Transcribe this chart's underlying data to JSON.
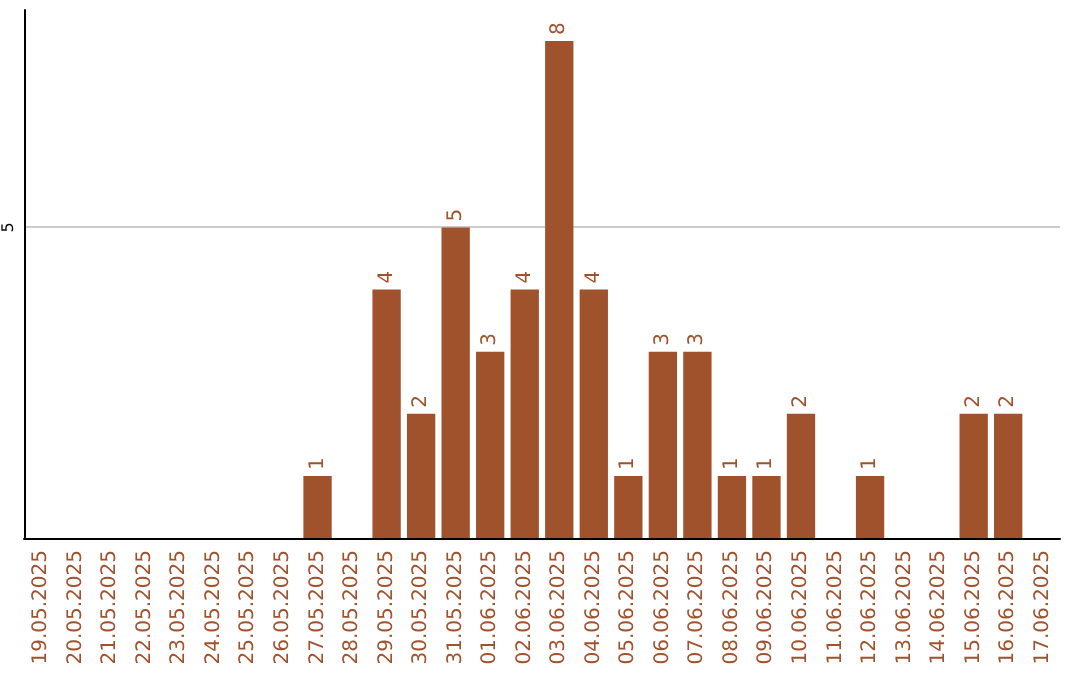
{
  "chart_data": {
    "type": "bar",
    "categories": [
      "19.05.2025",
      "20.05.2025",
      "21.05.2025",
      "22.05.2025",
      "23.05.2025",
      "24.05.2025",
      "25.05.2025",
      "26.05.2025",
      "27.05.2025",
      "28.05.2025",
      "29.05.2025",
      "30.05.2025",
      "31.05.2025",
      "01.06.2025",
      "02.06.2025",
      "03.06.2025",
      "04.06.2025",
      "05.06.2025",
      "06.06.2025",
      "07.06.2025",
      "08.06.2025",
      "09.06.2025",
      "10.06.2025",
      "11.06.2025",
      "12.06.2025",
      "13.06.2025",
      "14.06.2025",
      "15.06.2025",
      "16.06.2025",
      "17.06.2025"
    ],
    "values": [
      0,
      0,
      0,
      0,
      0,
      0,
      0,
      0,
      1,
      0,
      4,
      2,
      5,
      3,
      4,
      8,
      4,
      1,
      3,
      3,
      1,
      1,
      2,
      0,
      1,
      0,
      0,
      2,
      2,
      0
    ],
    "value_labels": [
      null,
      null,
      null,
      null,
      null,
      null,
      null,
      null,
      "1",
      null,
      "4",
      "2",
      "5",
      "3",
      "4",
      "8",
      "4",
      "1",
      "3",
      "3",
      "1",
      "1",
      "2",
      null,
      "1",
      null,
      null,
      "2",
      "2",
      null
    ],
    "color": "#a0522d",
    "ylim": [
      0,
      8.5
    ],
    "yticks": [
      5
    ],
    "grid": "y"
  }
}
